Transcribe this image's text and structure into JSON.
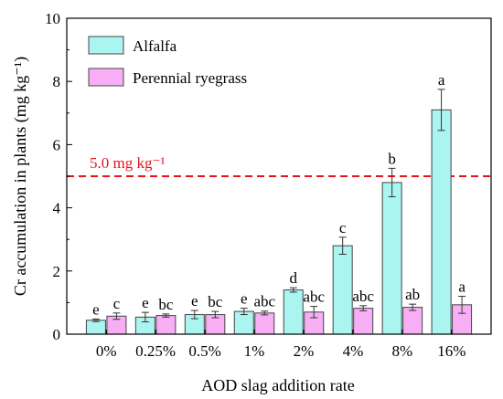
{
  "chart_data": {
    "type": "bar",
    "xlabel": "AOD slag addition rate",
    "ylabel": "Cr accumulation in plants (mg kg⁻¹)",
    "ylim": [
      0,
      10
    ],
    "yticks": [
      0,
      2,
      4,
      6,
      8,
      10
    ],
    "categories": [
      "0%",
      "0.25%",
      "0.5%",
      "1%",
      "2%",
      "4%",
      "8%",
      "16%"
    ],
    "series": [
      {
        "name": "Alfalfa",
        "color": "#aaf5f0",
        "values": [
          0.44,
          0.54,
          0.62,
          0.72,
          1.4,
          2.8,
          4.8,
          7.1
        ],
        "errors": [
          0.04,
          0.15,
          0.13,
          0.1,
          0.07,
          0.27,
          0.45,
          0.65
        ],
        "letters": [
          "e",
          "e",
          "e",
          "e",
          "d",
          "c",
          "b",
          "a"
        ]
      },
      {
        "name": "Perennial ryegrass",
        "color": "#f8aef5",
        "values": [
          0.57,
          0.59,
          0.62,
          0.67,
          0.7,
          0.82,
          0.85,
          0.93
        ],
        "errors": [
          0.1,
          0.05,
          0.1,
          0.06,
          0.18,
          0.08,
          0.1,
          0.27
        ],
        "letters": [
          "c",
          "bc",
          "bc",
          "abc",
          "abc",
          "abc",
          "ab",
          "a"
        ]
      }
    ],
    "threshold": {
      "value": 5.0,
      "label": "5.0 mg kg⁻¹",
      "color": "#e8141c"
    },
    "legend_position": "top-left",
    "grid": false
  }
}
